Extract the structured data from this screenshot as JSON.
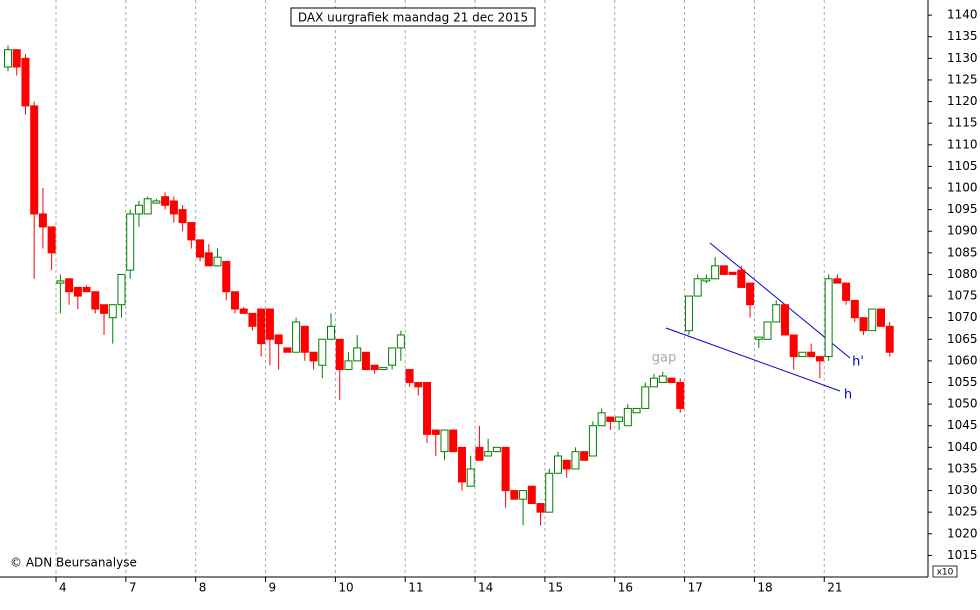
{
  "chart_data": {
    "type": "candlestick",
    "title": "DAX uurgrafiek maandag 21 dec 2015",
    "copyright": "© ADN Beursanalyse",
    "axis_note": "x10",
    "annotations": [
      "gap",
      "h'",
      "h"
    ],
    "up_color": "#008000",
    "down_color": "#ff0000",
    "grid": true,
    "categories": [
      null,
      null,
      null,
      null,
      null,
      null,
      "4",
      null,
      null,
      null,
      null,
      null,
      null,
      null,
      "7",
      null,
      null,
      null,
      null,
      null,
      null,
      null,
      "8",
      null,
      null,
      null,
      null,
      null,
      null,
      null,
      "9",
      null,
      null,
      null,
      null,
      null,
      null,
      null,
      "10",
      null,
      null,
      null,
      null,
      null,
      null,
      null,
      "11",
      null,
      null,
      null,
      null,
      null,
      null,
      null,
      "14",
      null,
      null,
      null,
      null,
      null,
      null,
      null,
      "15",
      null,
      null,
      null,
      null,
      null,
      null,
      null,
      "16",
      null,
      null,
      null,
      null,
      null,
      null,
      null,
      "17",
      null,
      null,
      null,
      null,
      null,
      null,
      null,
      "18",
      null,
      null,
      null,
      null,
      null,
      null,
      null,
      "21",
      null,
      null,
      null,
      null,
      null,
      null,
      null
    ],
    "open": [
      1128,
      1132,
      1130,
      1119,
      1094,
      1091,
      1078,
      1079,
      1077,
      1077,
      1076,
      1073,
      1070,
      1073,
      1081,
      1094,
      1094,
      1096.5,
      1098,
      1097,
      1095,
      1092,
      1088,
      1085,
      1082,
      1083,
      1076,
      1072,
      1071,
      1072,
      1072,
      1066,
      1063,
      1062,
      1068,
      1062,
      1059,
      1065,
      1065,
      1058,
      1060,
      1062,
      1059,
      1058,
      1059,
      1063,
      1058,
      1055,
      1055,
      1044,
      1039,
      1044,
      1040,
      1031,
      1040,
      1038,
      1039,
      1040,
      1030,
      1028,
      1031,
      1027,
      1025,
      1034,
      1037,
      1035,
      1039,
      1038,
      1045,
      1047,
      1046,
      1045,
      1048,
      1049,
      1054,
      1055,
      1056,
      1055,
      1067,
      1075,
      1078.5,
      1079,
      1082,
      1080.5,
      1081,
      1078,
      1065,
      1065,
      1069,
      1073,
      1066,
      1061,
      1062,
      1061,
      1061,
      1079,
      1078,
      1074,
      1070,
      1067,
      1072,
      1068
    ],
    "high": [
      1133,
      1132,
      1131,
      1120,
      1100,
      1091,
      1080,
      1079,
      1077,
      1077.5,
      1076,
      1073,
      1073,
      1080,
      1095,
      1097,
      1098,
      1097.5,
      1099,
      1098,
      1096,
      1092,
      1088,
      1087,
      1086,
      1083,
      1076,
      1072.5,
      1071,
      1072,
      1072,
      1066,
      1063,
      1070,
      1068,
      1062,
      1065,
      1071,
      1065,
      1062,
      1066,
      1062,
      1059,
      1058.5,
      1063,
      1067,
      1058,
      1055,
      1055,
      1044,
      1044,
      1044,
      1040,
      1038,
      1045,
      1042,
      1040,
      1040,
      1030,
      1030,
      1031,
      1027,
      1035,
      1039,
      1037,
      1040,
      1039,
      1046,
      1049,
      1047,
      1047,
      1050,
      1049,
      1055,
      1057,
      1057.5,
      1056,
      1056,
      1075,
      1080,
      1080,
      1084,
      1082,
      1080.5,
      1082,
      1078,
      1065.5,
      1069,
      1074,
      1073,
      1066,
      1062,
      1064,
      1061,
      1080,
      1080,
      1078,
      1074,
      1070,
      1072,
      1072,
      1069
    ],
    "low": [
      1127,
      1126,
      1117,
      1079,
      1086,
      1081,
      1071,
      1073,
      1072,
      1076,
      1071,
      1066,
      1064,
      1070,
      1079,
      1091,
      1094,
      1096.5,
      1095,
      1092,
      1090,
      1086,
      1083,
      1082,
      1082,
      1074,
      1071,
      1071,
      1067,
      1061,
      1059,
      1058,
      1062,
      1062,
      1060,
      1058,
      1056,
      1065,
      1051,
      1058,
      1060,
      1058,
      1057,
      1058,
      1058,
      1060,
      1054,
      1052,
      1041,
      1038,
      1037,
      1039,
      1030,
      1031,
      1037,
      1038,
      1039,
      1026,
      1028,
      1022,
      1027,
      1022,
      1025,
      1034,
      1033,
      1035,
      1037,
      1038,
      1045,
      1044,
      1044,
      1045,
      1048,
      1049,
      1054,
      1055,
      1055,
      1048,
      1066,
      1075,
      1078,
      1079,
      1080,
      1080,
      1077,
      1070,
      1063,
      1065,
      1069,
      1066,
      1058,
      1061,
      1061,
      1056,
      1060,
      1078,
      1073,
      1069,
      1066,
      1067,
      1068,
      1061
    ],
    "close": [
      1132,
      1128,
      1119,
      1094,
      1091,
      1085,
      1078.5,
      1076,
      1075,
      1076,
      1072,
      1071,
      1073,
      1080,
      1094,
      1096,
      1097.5,
      1097,
      1096,
      1094,
      1092,
      1088,
      1084,
      1082,
      1084,
      1076,
      1072,
      1071,
      1068,
      1064,
      1065,
      1064,
      1062,
      1069,
      1062,
      1060,
      1065,
      1068,
      1058,
      1060,
      1063,
      1058,
      1058,
      1058.5,
      1063,
      1066,
      1055,
      1054,
      1043,
      1043,
      1044,
      1039,
      1032,
      1035,
      1037,
      1039,
      1040,
      1030,
      1028,
      1030,
      1027,
      1025,
      1034,
      1038,
      1035,
      1039,
      1037,
      1045,
      1048,
      1046,
      1047,
      1049,
      1049,
      1054,
      1056,
      1056.5,
      1055,
      1049,
      1075,
      1079,
      1079,
      1082,
      1080,
      1080,
      1077,
      1073,
      1065.5,
      1069,
      1073,
      1066,
      1061,
      1062,
      1061,
      1060,
      1079,
      1078,
      1074,
      1070,
      1067,
      1072,
      1068,
      1062
    ],
    "ylim": [
      1010,
      1143.5
    ],
    "yticks": [
      1015,
      1020,
      1025,
      1030,
      1035,
      1040,
      1045,
      1050,
      1055,
      1060,
      1065,
      1070,
      1075,
      1080,
      1085,
      1090,
      1095,
      1100,
      1105,
      1110,
      1115,
      1120,
      1125,
      1130,
      1135,
      1140
    ]
  }
}
